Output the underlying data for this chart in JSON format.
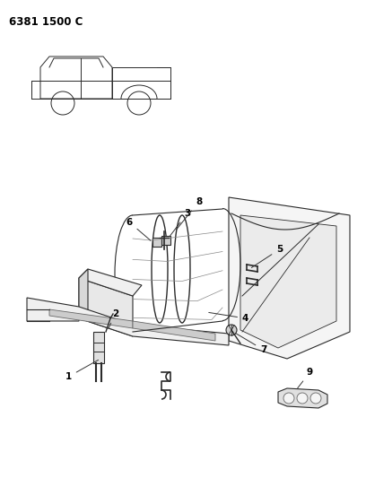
{
  "title": "6381 1500 C",
  "background_color": "#ffffff",
  "text_color": "#000000",
  "figsize": [
    4.08,
    5.33
  ],
  "dpi": 100,
  "line_color": "#2a2a2a",
  "line_color_light": "#555555",
  "seat_back_color": "#f2f2f2",
  "seat_cushion_color": "#e8e8e8",
  "panel_color": "#f5f5f5",
  "shadow_color": "#d0d0d0"
}
